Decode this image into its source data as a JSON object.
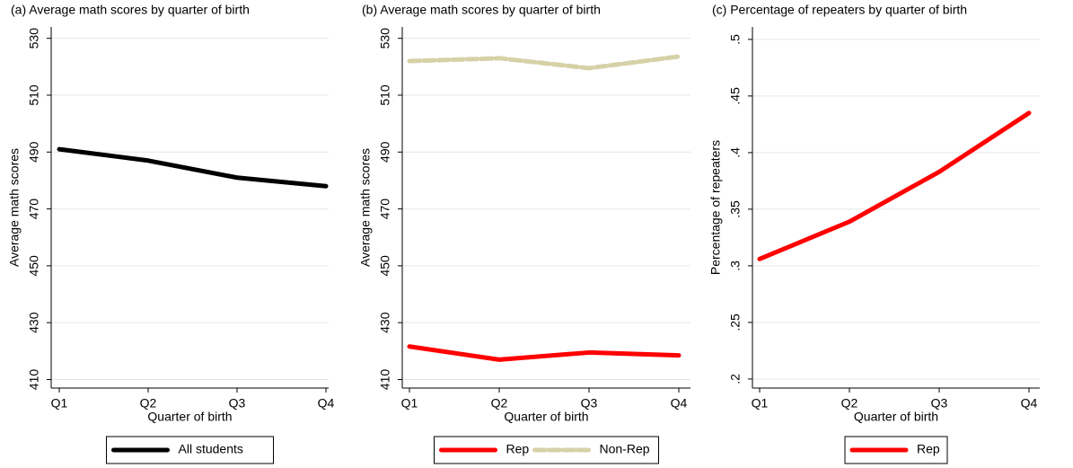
{
  "chart_data": [
    {
      "type": "line",
      "title": "(a) Average math scores by quarter of birth",
      "x_label": "Quarter of birth",
      "y_label": "Average math scores",
      "categories": [
        "Q1",
        "Q2",
        "Q3",
        "Q4"
      ],
      "series": [
        {
          "name": "All students",
          "color": "#000000",
          "dashed": false,
          "values": [
            491,
            487,
            481,
            478
          ]
        }
      ],
      "ylim": [
        407,
        534
      ],
      "yticks": [
        410,
        430,
        450,
        470,
        490,
        510,
        530
      ],
      "grid": true,
      "legend": "bottom"
    },
    {
      "type": "line",
      "title": "(b) Average math scores by quarter of birth",
      "x_label": "Quarter of birth",
      "y_label": "Average math scores",
      "categories": [
        "Q1",
        "Q2",
        "Q3",
        "Q4"
      ],
      "series": [
        {
          "name": "Rep",
          "color": "#ff0000",
          "dashed": false,
          "values": [
            421.6,
            417,
            419.5,
            418.5
          ]
        },
        {
          "name": "Non-Rep",
          "color": "#d6d1a6",
          "dashed": true,
          "values": [
            522,
            523,
            519.5,
            523.6
          ]
        }
      ],
      "ylim": [
        407,
        534
      ],
      "yticks": [
        410,
        430,
        450,
        470,
        490,
        510,
        530
      ],
      "grid": true,
      "legend": "bottom"
    },
    {
      "type": "line",
      "title": "(c) Percentage of repeaters by quarter of birth",
      "x_label": "Quarter of birth",
      "y_label": "Percentage of repeaters",
      "categories": [
        "Q1",
        "Q2",
        "Q3",
        "Q4"
      ],
      "series": [
        {
          "name": "Rep",
          "color": "#ff0000",
          "dashed": false,
          "values": [
            0.306,
            0.339,
            0.383,
            0.435
          ]
        }
      ],
      "ylim": [
        0.192,
        0.511
      ],
      "yticks": [
        {
          "value": 0.2,
          "label": ".2"
        },
        {
          "value": 0.25,
          "label": ".25"
        },
        {
          "value": 0.3,
          "label": ".3"
        },
        {
          "value": 0.35,
          "label": ".35"
        },
        {
          "value": 0.4,
          "label": ".4"
        },
        {
          "value": 0.45,
          "label": ".45"
        },
        {
          "value": 0.5,
          "label": ".5"
        }
      ],
      "grid": true,
      "legend": "bottom"
    }
  ]
}
